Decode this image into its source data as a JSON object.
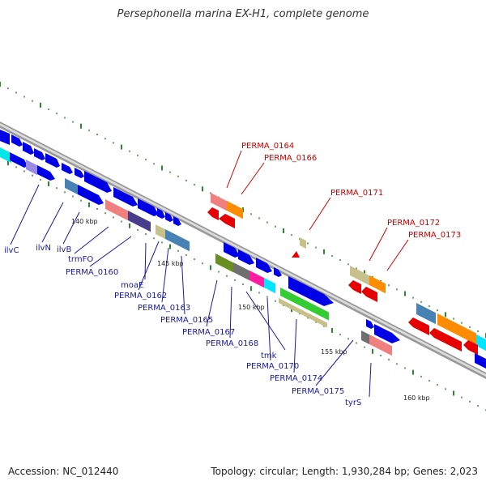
{
  "title": "Persephonella marina EX-H1, complete genome",
  "footer": {
    "accession": "Accession: NC_012440",
    "summary": "Topology: circular; Length: 1,930,284 bp; Genes: 2,023"
  },
  "scale_labels": [
    "140 kbp",
    "145 kbp",
    "150 kbp",
    "155 kbp",
    "160 kbp"
  ],
  "gene_labels_blue": [
    "ilvC",
    "ilvN",
    "ilvB",
    "trmFO",
    "PERMA_0160",
    "moaE",
    "PERMA_0162",
    "PERMA_0163",
    "PERMA_0165",
    "PERMA_0167",
    "PERMA_0168",
    "tmk",
    "PERMA_0170",
    "PERMA_0174",
    "PERMA_0175",
    "tyrS"
  ],
  "gene_labels_red": [
    "PERMA_0164",
    "PERMA_0166",
    "PERMA_0171",
    "PERMA_0172",
    "PERMA_0173"
  ],
  "colors": {
    "forward_cds": "#0000e6",
    "reverse_cds": "#e60000",
    "backbone": "#999999",
    "tick": "#2a8a2a",
    "label_blue": "#1a1aa0",
    "label_red": "#cc0000"
  }
}
